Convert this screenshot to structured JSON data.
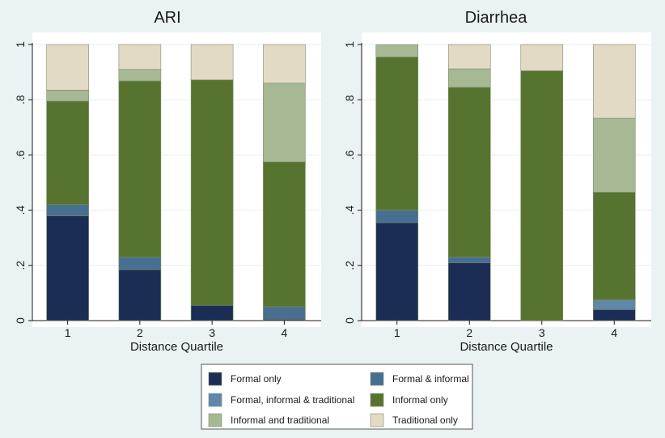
{
  "chart_data": {
    "type": "bar",
    "stacked": true,
    "xlabel": "Distance Quartile",
    "ylim": [
      0,
      1
    ],
    "yticks": [
      0,
      0.2,
      0.4,
      0.6,
      0.8,
      1
    ],
    "ytick_labels": [
      "0",
      ".2",
      ".4",
      ".6",
      ".8",
      "1"
    ],
    "categories": [
      "1",
      "2",
      "3",
      "4"
    ],
    "series": [
      {
        "name": "Formal only",
        "color": "#1c2d55"
      },
      {
        "name": "Formal, informal & traditional",
        "color": "#5f87aa"
      },
      {
        "name": "Informal and traditional",
        "color": "#a7b894"
      },
      {
        "name": "Formal & informal",
        "color": "#476f91"
      },
      {
        "name": "Informal only",
        "color": "#56742f"
      },
      {
        "name": "Traditional only",
        "color": "#e3dac6"
      }
    ],
    "stack_order": [
      "Formal only",
      "Formal & informal",
      "Formal, informal & traditional",
      "Informal only",
      "Informal and traditional",
      "Traditional only"
    ],
    "panels": [
      {
        "title": "ARI",
        "values": {
          "Formal only": [
            0.38,
            0.185,
            0.055,
            0.005
          ],
          "Formal & informal": [
            0.04,
            0.045,
            0.0,
            0.045
          ],
          "Formal, informal & traditional": [
            0.0,
            0.0,
            0.0,
            0.0
          ],
          "Informal only": [
            0.375,
            0.638,
            0.817,
            0.525
          ],
          "Informal and traditional": [
            0.04,
            0.042,
            0.0,
            0.285
          ],
          "Traditional only": [
            0.165,
            0.09,
            0.128,
            0.14
          ]
        }
      },
      {
        "title": "Diarrhea",
        "values": {
          "Formal only": [
            0.355,
            0.21,
            0.0,
            0.04
          ],
          "Formal & informal": [
            0.045,
            0.02,
            0.0,
            0.0
          ],
          "Formal, informal & traditional": [
            0.0,
            0.0,
            0.0,
            0.035
          ],
          "Informal only": [
            0.555,
            0.615,
            0.905,
            0.39
          ],
          "Informal and traditional": [
            0.045,
            0.067,
            0.0,
            0.268
          ],
          "Traditional only": [
            0.0,
            0.088,
            0.095,
            0.267
          ]
        }
      }
    ],
    "legend": {
      "placement": "bottom",
      "columns": [
        [
          "Formal only",
          "Formal, informal & traditional",
          "Informal and traditional"
        ],
        [
          "Formal & informal",
          "Informal only",
          "Traditional only"
        ]
      ]
    }
  }
}
